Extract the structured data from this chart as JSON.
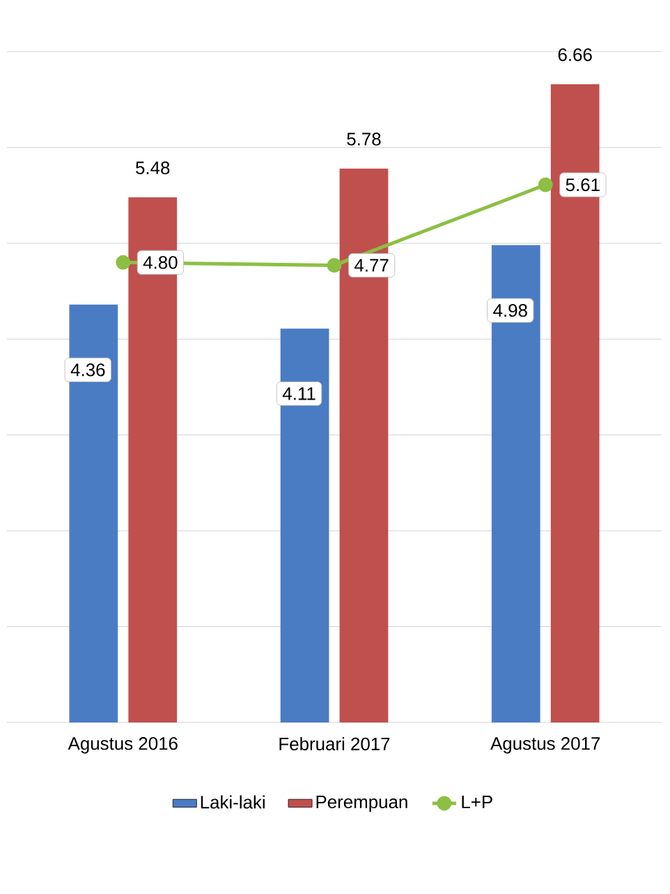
{
  "chart_data": {
    "type": "bar",
    "categories": [
      "Agustus 2016",
      "Februari 2017",
      "Agustus 2017"
    ],
    "series": [
      {
        "name": "Laki-laki",
        "color": "#4a7cc4",
        "values": [
          4.36,
          4.11,
          4.98
        ],
        "value_labels": [
          "4.36",
          "4.11",
          "4.98"
        ]
      },
      {
        "name": "Perempuan",
        "color": "#c0504d",
        "values": [
          5.48,
          5.78,
          6.66
        ],
        "value_labels": [
          "5.48",
          "5.78",
          "6.66"
        ]
      },
      {
        "name": "L+P",
        "type": "line",
        "color": "#8cbf44",
        "marker": "circle",
        "values": [
          4.8,
          4.77,
          5.61
        ],
        "value_labels": [
          "4.80",
          "4.77",
          "5.61"
        ]
      }
    ],
    "ylim": [
      0,
      7
    ],
    "yticks": [
      {
        "value": 0,
        "label": null
      },
      {
        "value": 1,
        "label": null
      },
      {
        "value": 2,
        "label": null
      },
      {
        "value": 3,
        "label": null
      },
      {
        "value": 4,
        "label": null
      },
      {
        "value": 5,
        "label": null
      },
      {
        "value": 6,
        "label": null
      },
      {
        "value": 7,
        "label": null
      }
    ],
    "tick_labels": "x",
    "grid": "y",
    "legend": "bottom"
  }
}
